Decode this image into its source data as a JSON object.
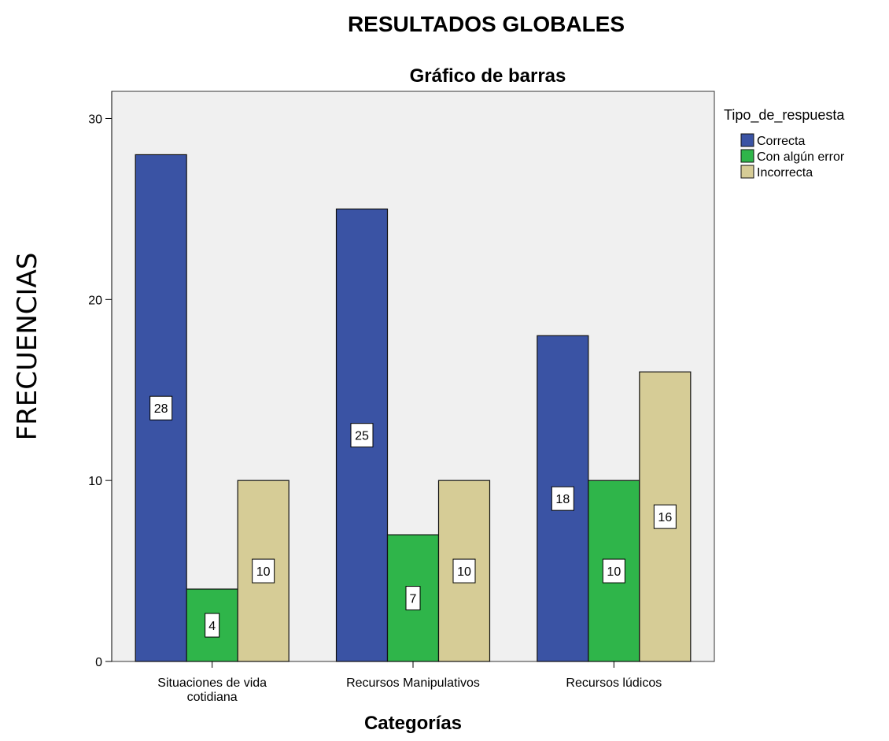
{
  "chart_data": {
    "type": "bar",
    "title": "RESULTADOS GLOBALES",
    "subtitle": "Gráfico de barras",
    "xlabel": "Categorías",
    "ylabel": "FRECUENCIAS",
    "ylim": [
      0,
      31.5
    ],
    "yticks": [
      0,
      10,
      20,
      30
    ],
    "categories": [
      [
        "Situaciones de vida",
        "cotidiana"
      ],
      [
        "Recursos Manipulativos"
      ],
      [
        "Recursos lúdicos"
      ]
    ],
    "legend_title": "Tipo_de_respuesta",
    "legend_position": "top-right, outside",
    "series": [
      {
        "name": "Correcta",
        "color": "#3a53a4",
        "values": [
          28,
          25,
          18
        ]
      },
      {
        "name": "Con algún error",
        "color": "#2fb54a",
        "values": [
          4,
          7,
          10
        ]
      },
      {
        "name": "Incorrecta",
        "color": "#d6cc96",
        "values": [
          10,
          10,
          16
        ]
      }
    ],
    "plot_background": "#f0f0f0",
    "grid": false
  }
}
